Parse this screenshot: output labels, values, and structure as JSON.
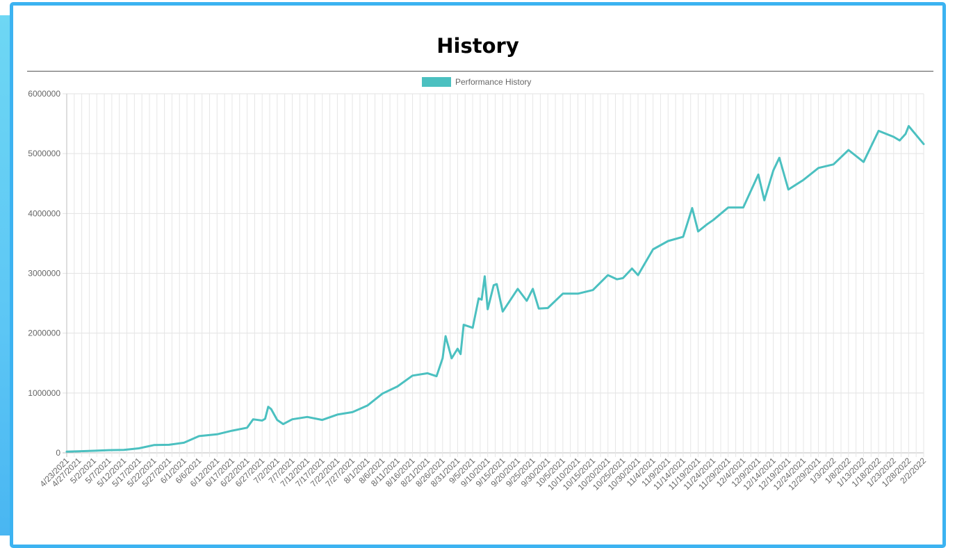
{
  "page": {
    "title": "History",
    "accent_color": "#3cb3f1"
  },
  "chart_data": {
    "type": "line",
    "title": "",
    "xlabel": "",
    "ylabel": "",
    "legend": {
      "position": "top",
      "entries": [
        "Performance History"
      ]
    },
    "grid": true,
    "line_color": "#4bc0c0",
    "ylim": [
      0,
      6000000
    ],
    "y_ticks": [
      "0",
      "1000000",
      "2000000",
      "3000000",
      "4000000",
      "5000000",
      "6000000"
    ],
    "x_tick_labels": [
      "4/23/2021",
      "4/27/2021",
      "5/2/2021",
      "5/7/2021",
      "5/12/2021",
      "5/17/2021",
      "5/22/2021",
      "5/27/2021",
      "6/1/2021",
      "6/6/2021",
      "6/12/2021",
      "6/17/2021",
      "6/22/2021",
      "6/27/2021",
      "7/2/2021",
      "7/7/2021",
      "7/12/2021",
      "7/17/2021",
      "7/22/2021",
      "7/27/2021",
      "8/1/2021",
      "8/6/2021",
      "8/11/2021",
      "8/16/2021",
      "8/21/2021",
      "8/26/2021",
      "8/31/2021",
      "9/5/2021",
      "9/10/2021",
      "9/15/2021",
      "9/20/2021",
      "9/25/2021",
      "9/30/2021",
      "10/5/2021",
      "10/10/2021",
      "10/15/2021",
      "10/20/2021",
      "10/25/2021",
      "10/30/2021",
      "11/4/2021",
      "11/9/2021",
      "11/14/2021",
      "11/19/2021",
      "11/24/2021",
      "11/29/2021",
      "12/4/2021",
      "12/9/2021",
      "12/14/2021",
      "12/19/2021",
      "12/24/2021",
      "12/29/2021",
      "1/3/2022",
      "1/8/2022",
      "1/13/2022",
      "1/18/2022",
      "1/23/2022",
      "1/28/2022",
      "2/2/2022"
    ],
    "series": [
      {
        "name": "Performance History",
        "x": [
          "4/23/2021",
          "4/27/2021",
          "5/2/2021",
          "5/7/2021",
          "5/12/2021",
          "5/17/2021",
          "5/22/2021",
          "5/27/2021",
          "6/1/2021",
          "6/6/2021",
          "6/12/2021",
          "6/17/2021",
          "6/22/2021",
          "6/24/2021",
          "6/27/2021",
          "6/28/2021",
          "6/29/2021",
          "6/30/2021",
          "7/2/2021",
          "7/4/2021",
          "7/7/2021",
          "7/12/2021",
          "7/17/2021",
          "7/22/2021",
          "7/27/2021",
          "8/1/2021",
          "8/6/2021",
          "8/11/2021",
          "8/16/2021",
          "8/21/2021",
          "8/24/2021",
          "8/26/2021",
          "8/27/2021",
          "8/29/2021",
          "8/31/2021",
          "9/1/2021",
          "9/2/2021",
          "9/5/2021",
          "9/7/2021",
          "9/8/2021",
          "9/9/2021",
          "9/10/2021",
          "9/12/2021",
          "9/13/2021",
          "9/15/2021",
          "9/20/2021",
          "9/23/2021",
          "9/25/2021",
          "9/27/2021",
          "9/30/2021",
          "10/5/2021",
          "10/10/2021",
          "10/15/2021",
          "10/20/2021",
          "10/23/2021",
          "10/25/2021",
          "10/28/2021",
          "10/30/2021",
          "11/4/2021",
          "11/9/2021",
          "11/14/2021",
          "11/17/2021",
          "11/19/2021",
          "11/22/2021",
          "11/24/2021",
          "11/29/2021",
          "12/4/2021",
          "12/9/2021",
          "12/11/2021",
          "12/14/2021",
          "12/16/2021",
          "12/19/2021",
          "12/24/2021",
          "12/29/2021",
          "1/3/2022",
          "1/8/2022",
          "1/13/2022",
          "1/18/2022",
          "1/23/2022",
          "1/25/2022",
          "1/27/2022",
          "1/28/2022",
          "2/2/2022"
        ],
        "y": [
          20000,
          25000,
          35000,
          45000,
          50000,
          75000,
          130000,
          135000,
          170000,
          280000,
          310000,
          370000,
          420000,
          560000,
          540000,
          570000,
          770000,
          730000,
          550000,
          480000,
          560000,
          600000,
          550000,
          640000,
          680000,
          790000,
          990000,
          1110000,
          1290000,
          1330000,
          1280000,
          1580000,
          1950000,
          1580000,
          1740000,
          1650000,
          2140000,
          2090000,
          2580000,
          2560000,
          2950000,
          2400000,
          2800000,
          2820000,
          2360000,
          2740000,
          2540000,
          2740000,
          2410000,
          2420000,
          2660000,
          2660000,
          2720000,
          2970000,
          2900000,
          2920000,
          3080000,
          2970000,
          3400000,
          3540000,
          3610000,
          4090000,
          3700000,
          3820000,
          3890000,
          4100000,
          4100000,
          4650000,
          4220000,
          4720000,
          4930000,
          4400000,
          4560000,
          4760000,
          4820000,
          5060000,
          4860000,
          5380000,
          5280000,
          5220000,
          5330000,
          5460000,
          5160000
        ]
      }
    ]
  }
}
